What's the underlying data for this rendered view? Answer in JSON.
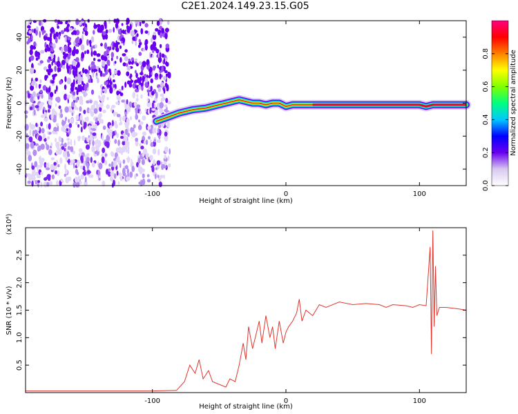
{
  "title": "C2E1.2024.149.23.15.G05",
  "chart_data": [
    {
      "type": "heatmap",
      "panel": "spectrogram",
      "xlabel": "Height of straight line (km)",
      "ylabel": "Frequency (Hz)",
      "xlim": [
        -195,
        135
      ],
      "ylim": [
        -50,
        50
      ],
      "xticks": [
        -100,
        0,
        100
      ],
      "yticks": [
        -40,
        -20,
        0,
        20,
        40
      ],
      "colorbar": {
        "label": "Normalized spectral amplitude",
        "range": [
          0,
          1
        ],
        "ticks": [
          0.0,
          0.2,
          0.4,
          0.6,
          0.8
        ],
        "colormap": [
          "#ffffff",
          "#d8c8f0",
          "#6a00f0",
          "#0000ff",
          "#00c8ff",
          "#00ff80",
          "#80ff00",
          "#ffff00",
          "#ff8000",
          "#ff0000",
          "#ff0080"
        ]
      },
      "noise_region_x": [
        -195,
        -87
      ],
      "signal_trace": {
        "x": [
          -97,
          -90,
          -80,
          -70,
          -60,
          -50,
          -40,
          -35,
          -30,
          -25,
          -20,
          -15,
          -10,
          -5,
          0,
          5,
          10,
          20,
          40,
          60,
          80,
          100,
          105,
          110,
          120,
          135
        ],
        "frequency": [
          -11,
          -9,
          -6,
          -4,
          -3,
          -1,
          1,
          2,
          1,
          0,
          0,
          -1,
          0,
          0,
          -2,
          -1,
          -1,
          -1,
          -1,
          -1,
          -1,
          -1,
          -2,
          -1,
          -1,
          -1
        ]
      }
    },
    {
      "type": "line",
      "panel": "snr",
      "xlabel": "Height of straight line (km)",
      "ylabel": "SNR (10 * v/v)",
      "scale_label": "(x10⁴)",
      "xlim": [
        -195,
        135
      ],
      "ylim": [
        0,
        3.0
      ],
      "xticks": [
        -100,
        0,
        100
      ],
      "yticks": [
        0.5,
        1.0,
        1.5,
        2.0,
        2.5
      ],
      "color": "#e0342c",
      "series": [
        {
          "x": [
            -195,
            -150,
            -100,
            -82,
            -76,
            -72,
            -68,
            -65,
            -62,
            -58,
            -55,
            -50,
            -45,
            -42,
            -38,
            -35,
            -32,
            -30,
            -28,
            -25,
            -22,
            -20,
            -18,
            -15,
            -12,
            -10,
            -8,
            -5,
            -2,
            0,
            2,
            5,
            8,
            10,
            12,
            15,
            20,
            25,
            30,
            40,
            50,
            60,
            70,
            75,
            80,
            90,
            95,
            100,
            105,
            108,
            109,
            110,
            111,
            112,
            113,
            115,
            120,
            130,
            135
          ],
          "values": [
            0.03,
            0.03,
            0.03,
            0.04,
            0.2,
            0.5,
            0.35,
            0.6,
            0.25,
            0.4,
            0.2,
            0.15,
            0.1,
            0.25,
            0.2,
            0.5,
            0.9,
            0.6,
            1.2,
            0.8,
            1.1,
            1.3,
            0.9,
            1.4,
            1.0,
            1.2,
            0.8,
            1.3,
            0.9,
            1.1,
            1.2,
            1.3,
            1.45,
            1.7,
            1.3,
            1.5,
            1.4,
            1.6,
            1.55,
            1.65,
            1.6,
            1.62,
            1.6,
            1.55,
            1.6,
            1.58,
            1.55,
            1.6,
            1.58,
            2.65,
            0.7,
            2.95,
            1.2,
            2.3,
            1.4,
            1.55,
            1.55,
            1.52,
            1.5
          ]
        }
      ]
    }
  ]
}
